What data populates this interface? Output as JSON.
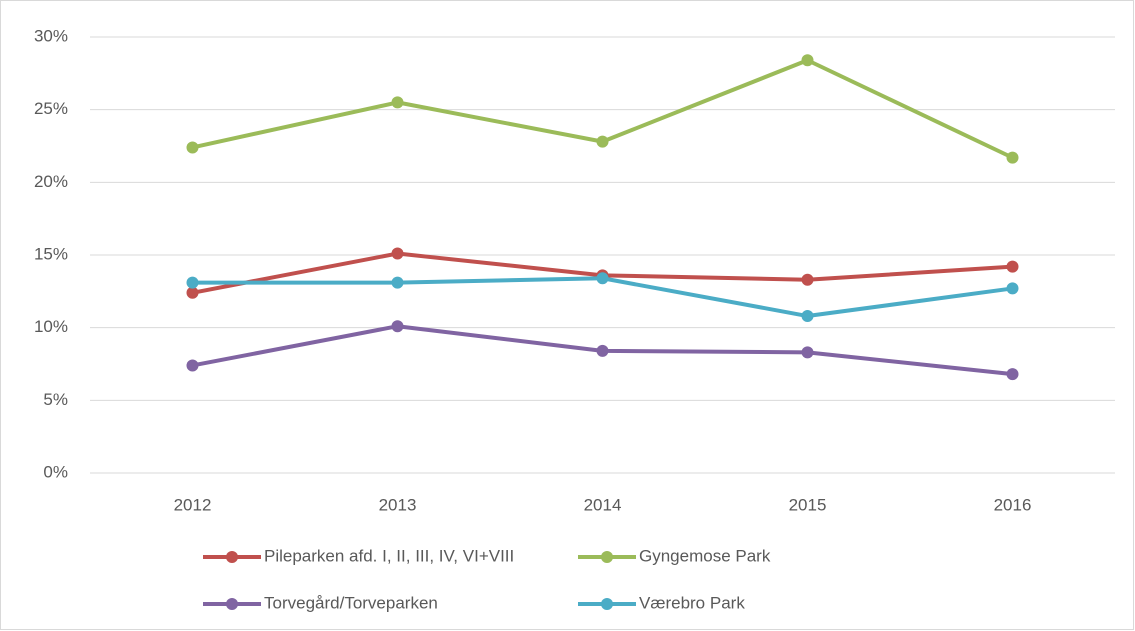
{
  "chart_data": {
    "type": "line",
    "categories": [
      "2012",
      "2013",
      "2014",
      "2015",
      "2016"
    ],
    "series": [
      {
        "name": "Pileparken afd. I, II, III, IV, VI+VIII",
        "color": "#c0504d",
        "values": [
          12.4,
          15.1,
          13.6,
          13.3,
          14.2
        ]
      },
      {
        "name": "Gyngemose Park",
        "color": "#9bbb59",
        "values": [
          22.4,
          25.5,
          22.8,
          28.4,
          21.7
        ]
      },
      {
        "name": "Torvegård/Torveparken",
        "color": "#8064a2",
        "values": [
          7.4,
          10.1,
          8.4,
          8.3,
          6.8
        ]
      },
      {
        "name": "Værebro Park",
        "color": "#4bacc6",
        "values": [
          13.1,
          13.1,
          13.4,
          10.8,
          12.7
        ]
      }
    ],
    "ylim": [
      0,
      30
    ],
    "yticks": [
      {
        "value": 0,
        "label": "0%"
      },
      {
        "value": 5,
        "label": "5%"
      },
      {
        "value": 10,
        "label": "10%"
      },
      {
        "value": 15,
        "label": "15%"
      },
      {
        "value": 20,
        "label": "20%"
      },
      {
        "value": 25,
        "label": "25%"
      },
      {
        "value": 30,
        "label": "30%"
      }
    ],
    "grid": true,
    "legend": "bottom"
  }
}
